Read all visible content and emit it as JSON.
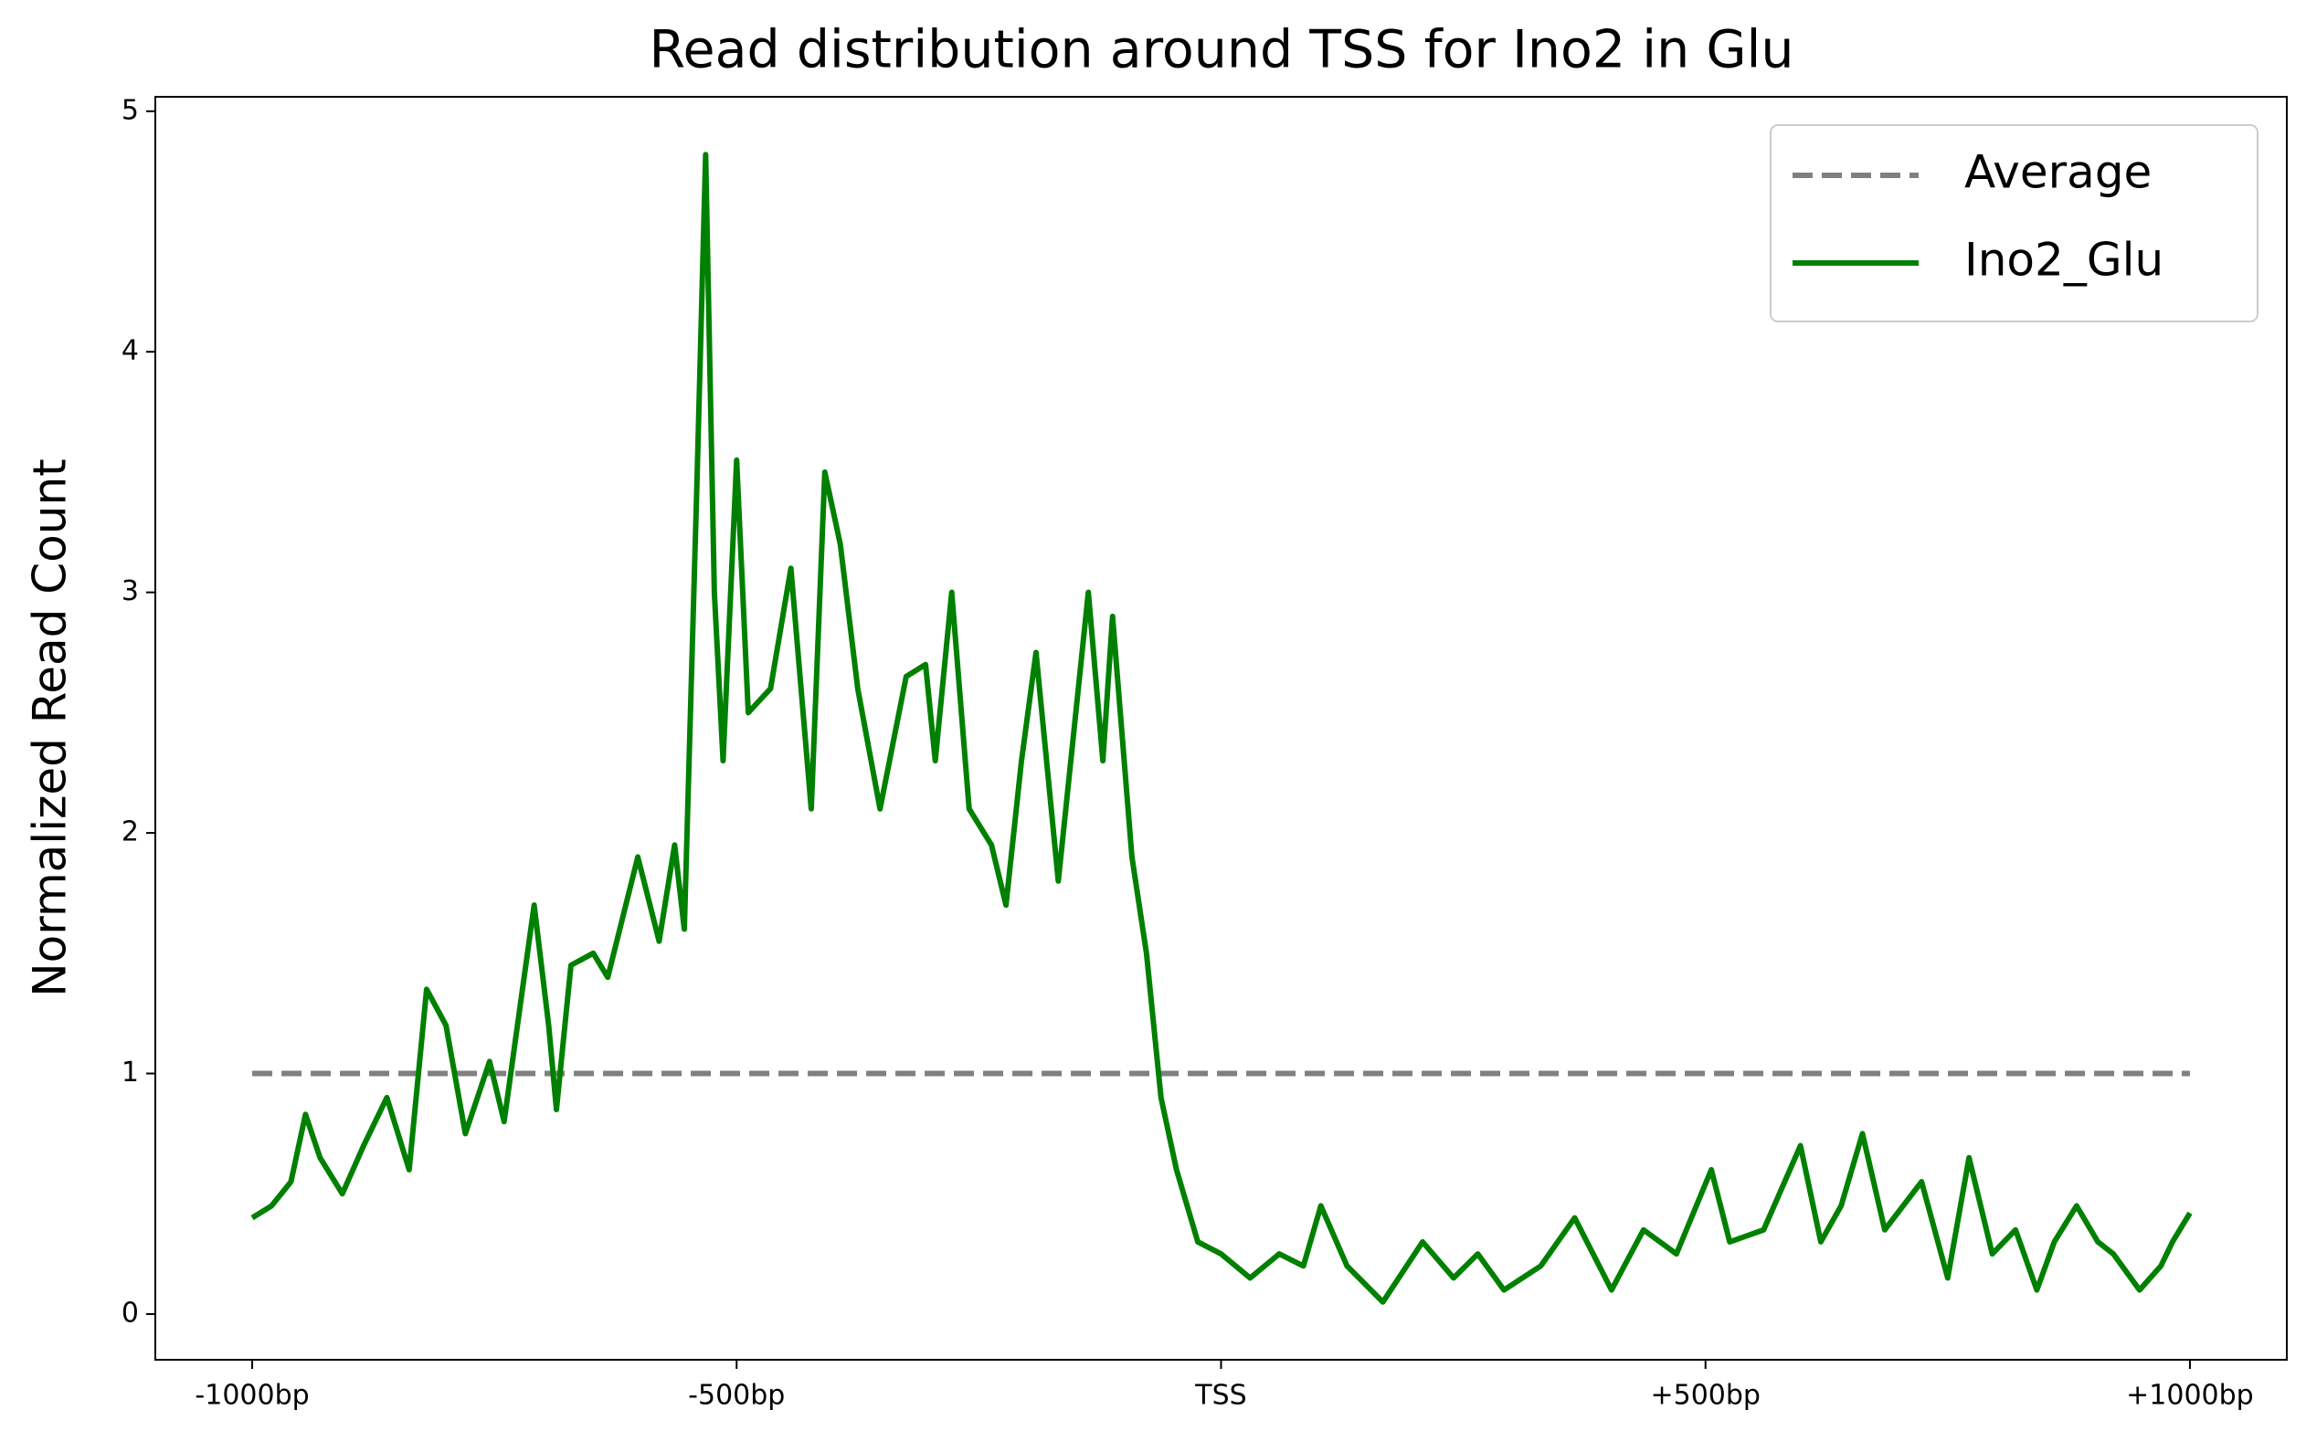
{
  "chart_data": {
    "type": "line",
    "title": "Read distribution around TSS for Ino2 in Glu",
    "ylabel": "Normalized Read Count",
    "xlim": [
      -1100,
      1100
    ],
    "ylim": [
      -0.19,
      5.06
    ],
    "xticks": [
      {
        "value": -1000,
        "label": "-1000bp"
      },
      {
        "value": -500,
        "label": "-500bp"
      },
      {
        "value": 0,
        "label": "TSS"
      },
      {
        "value": 500,
        "label": "+500bp"
      },
      {
        "value": 1000,
        "label": "+1000bp"
      }
    ],
    "yticks": [
      0,
      1,
      2,
      3,
      4,
      5
    ],
    "grid": false,
    "legend": "upper right",
    "series": [
      {
        "name": "Average",
        "color": "#808080",
        "dash": true,
        "x": [
          -1000,
          1000
        ],
        "values": [
          1,
          1
        ]
      },
      {
        "name": "Ino2_Glu",
        "color": "#008000",
        "dash": false,
        "x": [
          -1000,
          -980,
          -960,
          -945,
          -930,
          -907,
          -885,
          -861,
          -838,
          -820,
          -800,
          -780,
          -755,
          -740,
          -709,
          -694,
          -686,
          -671,
          -648,
          -633,
          -602,
          -580,
          -564,
          -554,
          -541,
          -532,
          -523,
          -514,
          -500,
          -488,
          -465,
          -444,
          -423,
          -409,
          -393,
          -375,
          -352,
          -325,
          -305,
          -295,
          -278,
          -260,
          -237,
          -222,
          -206,
          -191,
          -168,
          -137,
          -122,
          -112,
          -92,
          -77,
          -62,
          -46,
          -24,
          0,
          30,
          60,
          85,
          103,
          130,
          167,
          208,
          240,
          265,
          292,
          330,
          365,
          403,
          436,
          470,
          506,
          525,
          560,
          598,
          619,
          640,
          662,
          685,
          723,
          750,
          772,
          796,
          820,
          842,
          860,
          883,
          905,
          921,
          948,
          970,
          982,
          1000
        ],
        "values": [
          0.4,
          0.45,
          0.55,
          0.83,
          0.65,
          0.5,
          0.7,
          0.9,
          0.6,
          1.35,
          1.2,
          0.75,
          1.05,
          0.8,
          1.7,
          1.2,
          0.85,
          1.45,
          1.5,
          1.4,
          1.9,
          1.55,
          1.95,
          1.6,
          3.45,
          4.82,
          3.0,
          2.3,
          3.55,
          2.5,
          2.6,
          3.1,
          2.1,
          3.5,
          3.2,
          2.6,
          2.1,
          2.65,
          2.7,
          2.3,
          3.0,
          2.1,
          1.95,
          1.7,
          2.3,
          2.75,
          1.8,
          3.0,
          2.3,
          2.9,
          1.9,
          1.5,
          0.9,
          0.6,
          0.3,
          0.25,
          0.15,
          0.25,
          0.2,
          0.45,
          0.2,
          0.05,
          0.3,
          0.15,
          0.25,
          0.1,
          0.2,
          0.4,
          0.1,
          0.35,
          0.25,
          0.6,
          0.3,
          0.35,
          0.7,
          0.3,
          0.45,
          0.75,
          0.35,
          0.55,
          0.15,
          0.65,
          0.25,
          0.35,
          0.1,
          0.3,
          0.45,
          0.3,
          0.25,
          0.1,
          0.2,
          0.3,
          0.42
        ]
      }
    ]
  }
}
